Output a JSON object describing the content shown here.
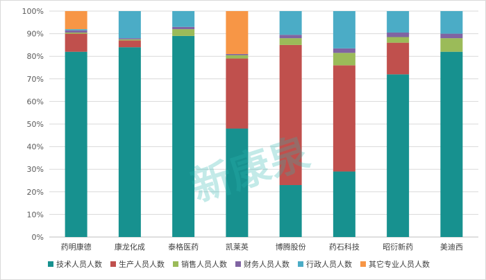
{
  "chart_data": {
    "type": "bar",
    "stacked": true,
    "percent": true,
    "categories": [
      "药明康德",
      "康龙化成",
      "泰格医药",
      "凯莱英",
      "博腾股份",
      "药石科技",
      "昭衍新药",
      "美迪西"
    ],
    "series": [
      {
        "name": "技术人员人数",
        "color": "#17918f",
        "values": [
          82,
          84,
          89,
          48,
          23,
          29,
          72,
          82
        ]
      },
      {
        "name": "生产人员人数",
        "color": "#c0504d",
        "values": [
          8,
          3,
          0,
          31,
          62,
          47,
          14,
          0
        ]
      },
      {
        "name": "销售人员人数",
        "color": "#9bbb59",
        "values": [
          0.5,
          0.5,
          3,
          1.5,
          3,
          5.5,
          2.5,
          6
        ]
      },
      {
        "name": "财务人员人数",
        "color": "#8064a2",
        "values": [
          1,
          0.5,
          1,
          0.5,
          1.5,
          2,
          2,
          2
        ]
      },
      {
        "name": "行政人员人数",
        "color": "#4bacc6",
        "values": [
          0.5,
          12,
          7,
          0,
          10.5,
          16.5,
          9.5,
          10
        ]
      },
      {
        "name": "其它专业人员人数",
        "color": "#f79646",
        "values": [
          8,
          0,
          0,
          19,
          0,
          0,
          0,
          0
        ]
      }
    ],
    "yticks": [
      "0%",
      "10%",
      "20%",
      "30%",
      "40%",
      "50%",
      "60%",
      "70%",
      "80%",
      "90%",
      "100%"
    ],
    "ylim": [
      0,
      100
    ],
    "grid": true,
    "legend": "bottom",
    "watermark": "新康泉"
  }
}
